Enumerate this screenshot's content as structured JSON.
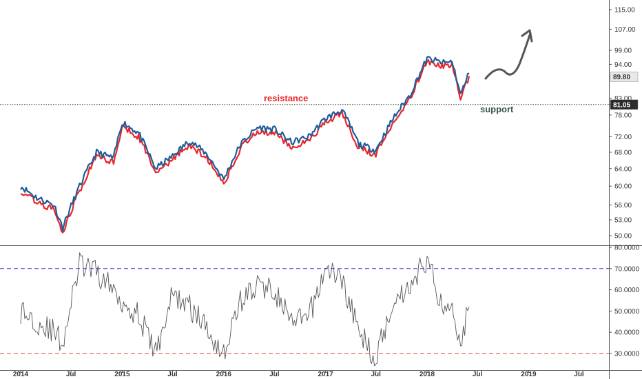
{
  "chart_data": [
    {
      "type": "line",
      "panel": "price",
      "y_ticks": [
        "115.00",
        "107.00",
        "99.00",
        "94.00",
        "89.80",
        "83.00",
        "81.05",
        "78.00",
        "72.00",
        "68.00",
        "64.00",
        "60.00",
        "56.00",
        "53.00",
        "50.00"
      ],
      "ylim": [
        48,
        118
      ],
      "y_scale": "log",
      "x_ticks": [
        "2014",
        "Jul",
        "2015",
        "Jul",
        "2016",
        "Jul",
        "2017",
        "Jul",
        "2018",
        "Jul",
        "2019",
        "Jul"
      ],
      "series": [
        {
          "color": "#1f5c99",
          "x": [
            "2014-01",
            "2014-03",
            "2014-05",
            "2014-06",
            "2014-08",
            "2014-10",
            "2014-12",
            "2015-01",
            "2015-03",
            "2015-05",
            "2015-07",
            "2015-09",
            "2015-11",
            "2016-01",
            "2016-03",
            "2016-05",
            "2016-07",
            "2016-09",
            "2016-11",
            "2017-01",
            "2017-03",
            "2017-05",
            "2017-07",
            "2017-09",
            "2017-11",
            "2018-01",
            "2018-03",
            "2018-04",
            "2018-05",
            "2018-06"
          ],
          "values": [
            60.0,
            57.5,
            56.0,
            51.5,
            60.0,
            68.0,
            66.5,
            76.0,
            73.0,
            64.0,
            67.0,
            71.0,
            67.5,
            61.5,
            70.0,
            74.5,
            74.0,
            70.5,
            72.0,
            77.0,
            79.5,
            70.0,
            68.5,
            77.0,
            84.0,
            96.0,
            94.5,
            95.0,
            84.0,
            91.0
          ]
        },
        {
          "color": "#e8262b",
          "x": [
            "2014-01",
            "2014-03",
            "2014-05",
            "2014-06",
            "2014-08",
            "2014-10",
            "2014-12",
            "2015-01",
            "2015-03",
            "2015-05",
            "2015-07",
            "2015-09",
            "2015-11",
            "2016-01",
            "2016-03",
            "2016-05",
            "2016-07",
            "2016-09",
            "2016-11",
            "2017-01",
            "2017-03",
            "2017-05",
            "2017-07",
            "2017-09",
            "2017-11",
            "2018-01",
            "2018-03",
            "2018-04",
            "2018-05",
            "2018-06"
          ],
          "values": [
            59.0,
            56.5,
            55.0,
            50.5,
            59.0,
            67.0,
            65.5,
            75.0,
            72.0,
            63.0,
            66.0,
            70.0,
            66.5,
            60.5,
            69.0,
            73.5,
            73.0,
            69.5,
            71.0,
            76.0,
            78.5,
            69.0,
            67.5,
            76.0,
            83.0,
            95.0,
            93.5,
            94.0,
            83.0,
            90.0
          ]
        }
      ],
      "horizontal_line": {
        "value": 81.05
      },
      "price_tags": [
        {
          "label": "89.80",
          "value": 89.8,
          "bg": "#e8e8e8",
          "fg": "#333333"
        },
        {
          "label": "81.05",
          "value": 81.05,
          "bg": "#2b2b2b",
          "fg": "#ffffff"
        }
      ],
      "annotations": [
        {
          "text": "resistance",
          "color": "#e8262b"
        },
        {
          "text": "support",
          "color": "#3a5a4a"
        }
      ]
    },
    {
      "type": "line",
      "panel": "oscillator",
      "y_ticks": [
        "80.0000",
        "70.0000",
        "60.0000",
        "50.0000",
        "40.0000",
        "30.0000"
      ],
      "ylim": [
        28,
        81
      ],
      "series": [
        {
          "color": "#555555",
          "x": [
            "2014-01",
            "2014-03",
            "2014-05",
            "2014-06",
            "2014-08",
            "2014-10",
            "2014-12",
            "2015-01",
            "2015-03",
            "2015-05",
            "2015-07",
            "2015-09",
            "2015-11",
            "2016-01",
            "2016-03",
            "2016-05",
            "2016-07",
            "2016-09",
            "2016-11",
            "2017-01",
            "2017-03",
            "2017-05",
            "2017-07",
            "2017-09",
            "2017-11",
            "2018-01",
            "2018-03",
            "2018-04",
            "2018-05",
            "2018-06"
          ],
          "values": [
            50,
            45,
            40,
            35,
            72,
            68,
            60,
            55,
            48,
            30,
            58,
            52,
            42,
            30,
            55,
            62,
            60,
            44,
            47,
            70,
            65,
            40,
            28,
            55,
            62,
            75,
            50,
            55,
            35,
            52
          ]
        }
      ],
      "horizontal_lines": [
        {
          "value": 70,
          "color": "#3c3cd6"
        },
        {
          "value": 30,
          "color": "#e03c3c"
        }
      ]
    }
  ]
}
